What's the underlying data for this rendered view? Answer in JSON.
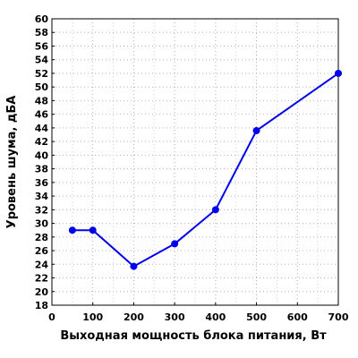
{
  "chart_data": {
    "type": "line",
    "title": "",
    "xlabel": "Выходная мощность блока питания, Вт",
    "ylabel": "Уровень шума, дБА",
    "xlim": [
      0,
      700
    ],
    "ylim": [
      18,
      60
    ],
    "x_ticks": [
      0,
      100,
      200,
      300,
      400,
      500,
      600,
      700
    ],
    "y_ticks": [
      18,
      20,
      22,
      24,
      26,
      28,
      30,
      32,
      34,
      36,
      38,
      40,
      42,
      44,
      46,
      48,
      50,
      52,
      54,
      56,
      58,
      60
    ],
    "grid": true,
    "legend": "none",
    "series": [
      {
        "color": "#0000ee",
        "x": [
          50,
          100,
          200,
          300,
          400,
          500,
          700
        ],
        "y": [
          29.0,
          29.0,
          23.7,
          27.0,
          32.0,
          43.6,
          52.0
        ]
      }
    ]
  }
}
